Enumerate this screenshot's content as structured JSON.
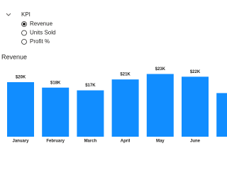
{
  "slicer": {
    "title": "KPI",
    "options": [
      "Revenue",
      "Units Sold",
      "Profit %"
    ],
    "selected": 0
  },
  "chart_data": {
    "type": "bar",
    "title": "Revenue",
    "categories": [
      "January",
      "February",
      "March",
      "April",
      "May",
      "June",
      null
    ],
    "values": [
      20000,
      18000,
      17000,
      21000,
      23000,
      22000,
      16000
    ],
    "value_labels": [
      "$20K",
      "$18K",
      "$17K",
      "$21K",
      "$23K",
      "$22K",
      null
    ],
    "color": "#118dff"
  }
}
